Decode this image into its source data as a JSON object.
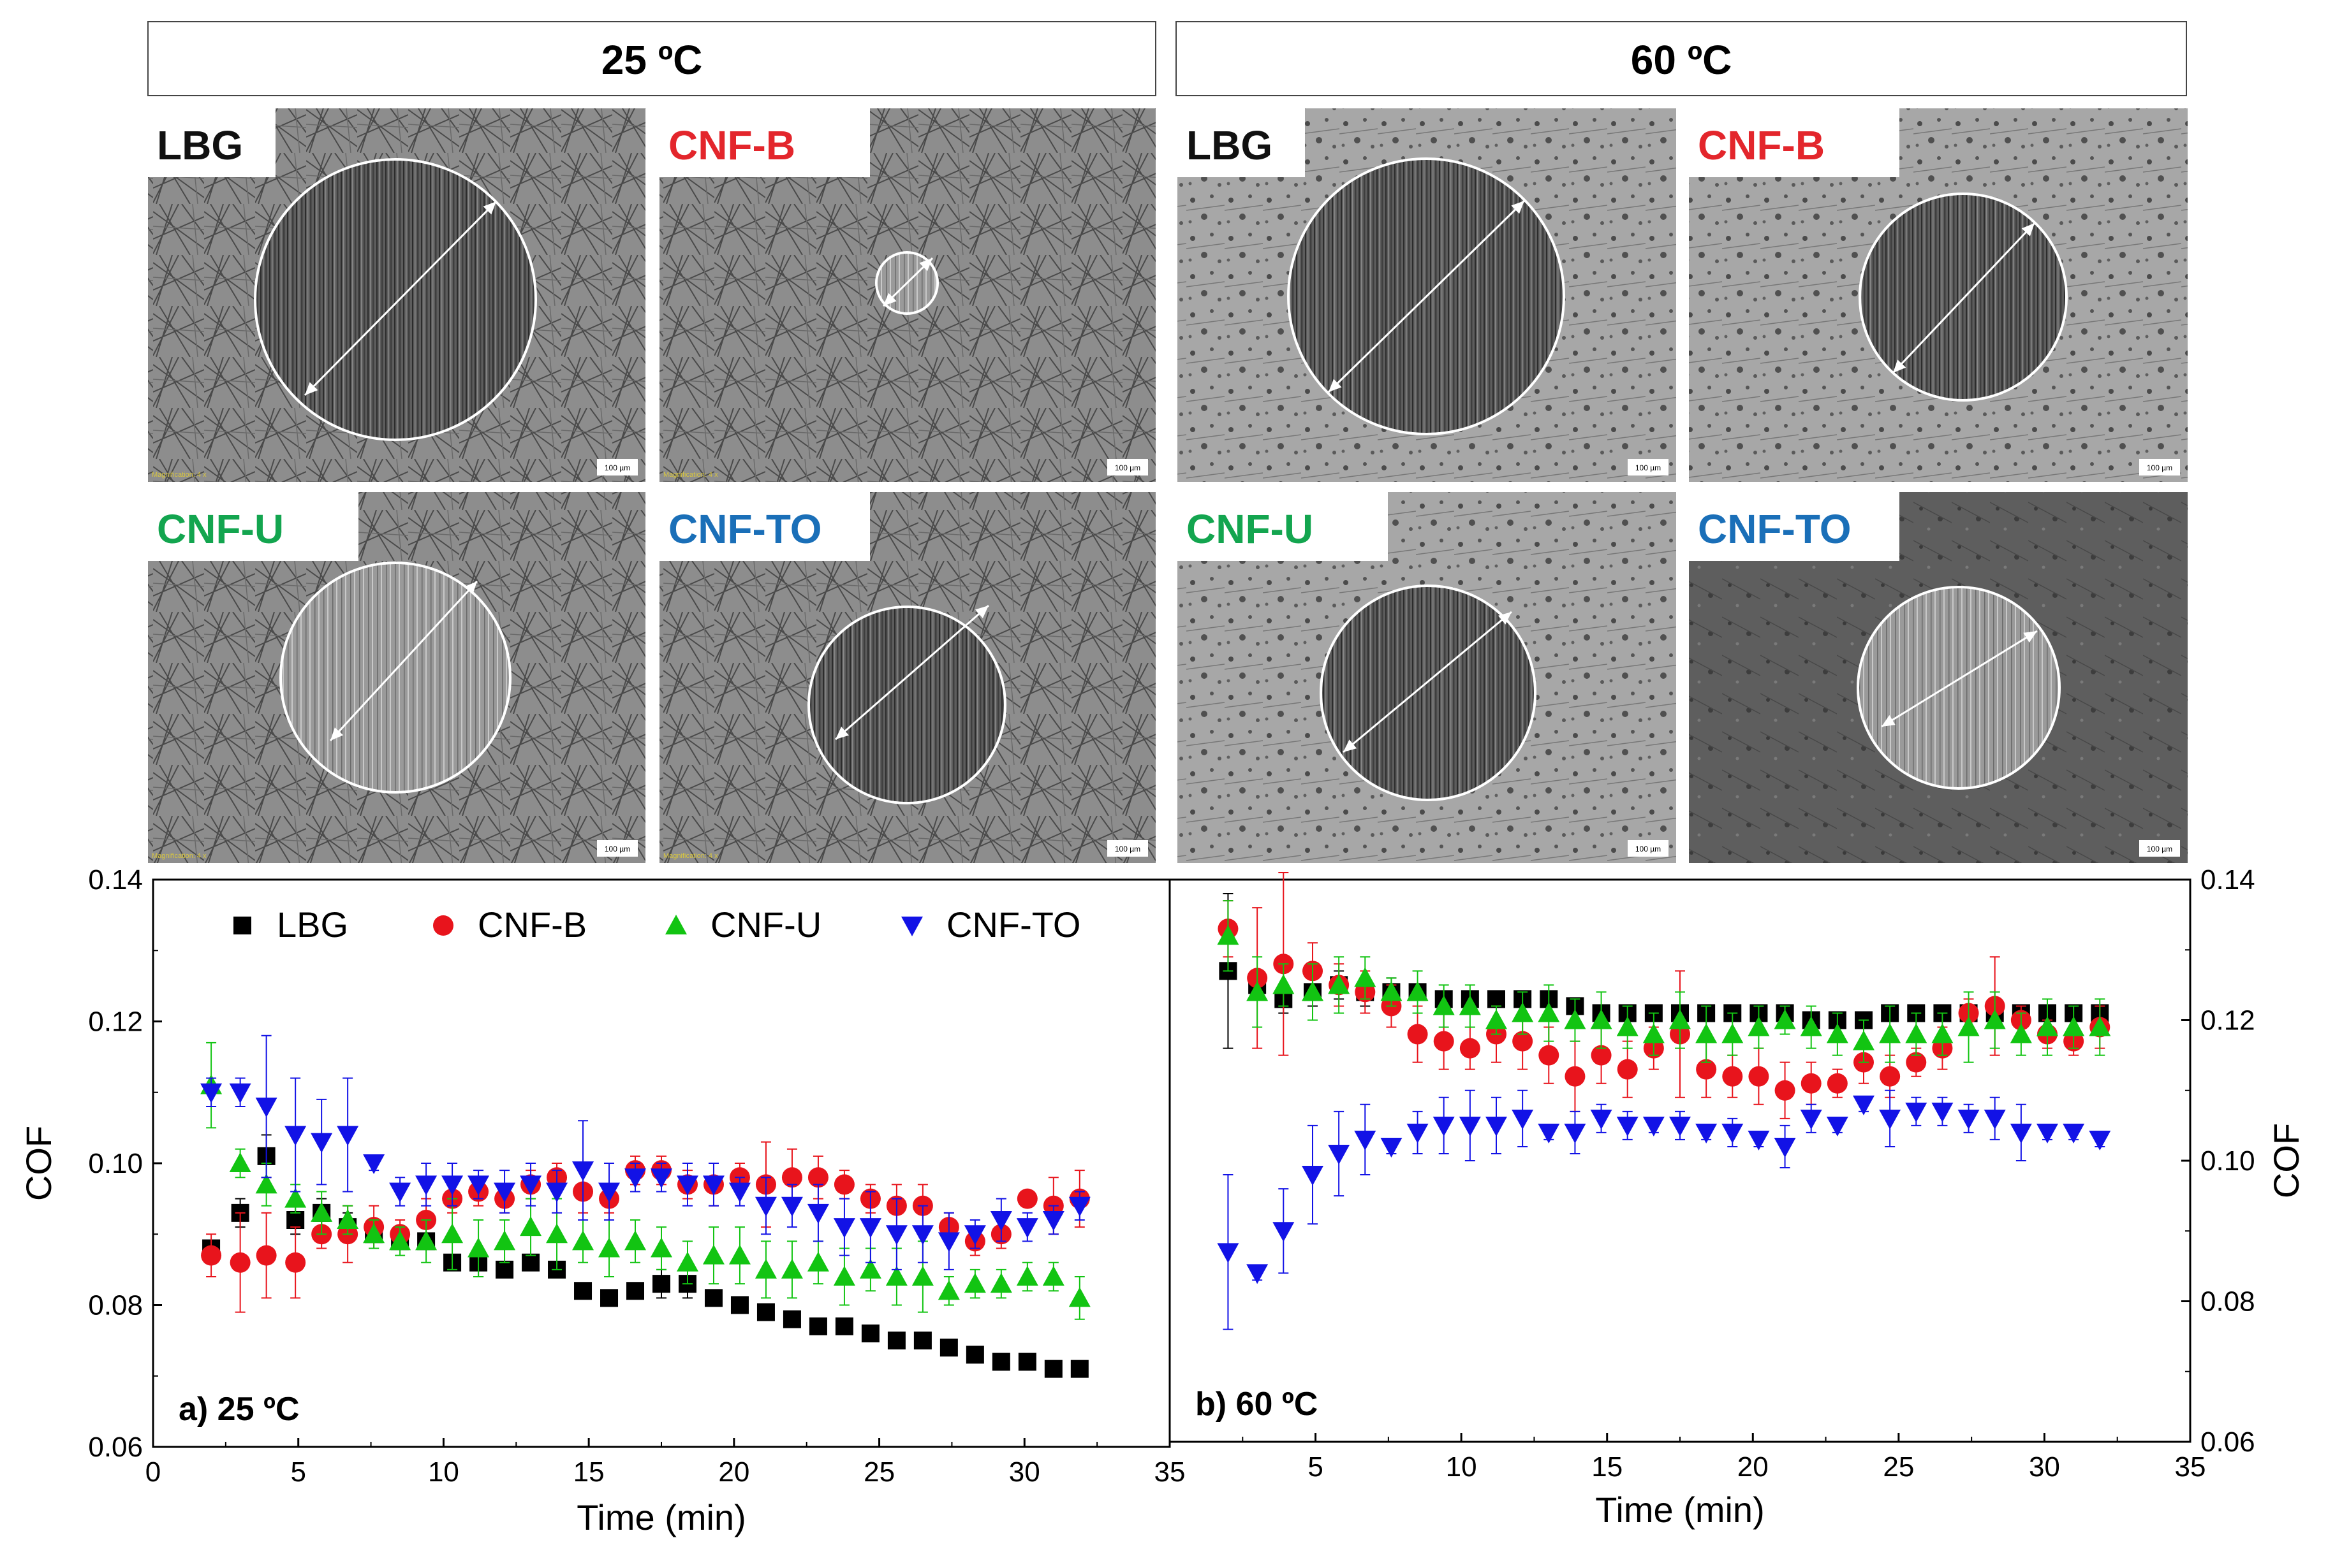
{
  "headers": {
    "left": "25 ºC",
    "right": "60 ºC"
  },
  "colors": {
    "LBG": "#000000",
    "CNF-B": "#e8141c",
    "CNF-U": "#12c412",
    "CNF-TO": "#1212e6",
    "label_LBG": "#111111",
    "label_CNF-B": "#e3262c",
    "label_CNF-U": "#13a54f",
    "label_CNF-TO": "#1a6fb8"
  },
  "images": [
    {
      "label": "LBG",
      "scale": "100 µm",
      "magnification": "Magnification: 4 x"
    },
    {
      "label": "CNF-B",
      "scale": "100 µm",
      "magnification": "Magnification: 4 x"
    },
    {
      "label": "LBG",
      "scale": "100 µm"
    },
    {
      "label": "CNF-B",
      "scale": "100 µm"
    },
    {
      "label": "CNF-U",
      "scale": "100 µm",
      "magnification": "Magnification: 4 x"
    },
    {
      "label": "CNF-TO",
      "scale": "100 µm",
      "magnification": "Magnification: 4 x"
    },
    {
      "label": "CNF-U",
      "scale": "100 µm"
    },
    {
      "label": "CNF-TO",
      "scale": "100 µm"
    }
  ],
  "chart_data": [
    {
      "type": "scatter",
      "title": "a) 25 ºC",
      "xlabel": "Time (min)",
      "ylabel": "COF",
      "xlim": [
        0,
        35
      ],
      "ylim": [
        0.06,
        0.14
      ],
      "xticks": [
        "0",
        "5",
        "10",
        "15",
        "20",
        "25",
        "30",
        "35"
      ],
      "yticks": [
        "0.06",
        "0.08",
        "0.10",
        "0.12",
        "0.14"
      ],
      "legend": "top-left",
      "x": [
        2.0,
        3.0,
        3.9,
        4.9,
        5.8,
        6.7,
        7.6,
        8.5,
        9.4,
        10.3,
        11.2,
        12.1,
        13.0,
        13.9,
        14.8,
        15.7,
        16.6,
        17.5,
        18.4,
        19.3,
        20.2,
        21.1,
        22.0,
        22.9,
        23.8,
        24.7,
        25.6,
        26.5,
        27.4,
        28.3,
        29.2,
        30.1,
        31.0,
        31.9
      ],
      "series": [
        {
          "name": "LBG",
          "marker": "square",
          "values": [
            0.088,
            0.093,
            0.101,
            0.092,
            0.093,
            0.091,
            0.09,
            0.089,
            0.089,
            0.086,
            0.086,
            0.085,
            0.086,
            0.085,
            0.082,
            0.081,
            0.082,
            0.083,
            0.083,
            0.081,
            0.08,
            0.079,
            0.078,
            0.077,
            0.077,
            0.076,
            0.075,
            0.075,
            0.074,
            0.073,
            0.072,
            0.072,
            0.071,
            0.071
          ],
          "err": [
            0.001,
            0.002,
            0.003,
            0.002,
            0.002,
            0.002,
            0.001,
            0.001,
            0.001,
            0.001,
            0.002,
            0.001,
            0.001,
            0.001,
            0.001,
            0.001,
            0.001,
            0.002,
            0.002,
            0.001,
            0.001,
            0.001,
            0.001,
            0.001,
            0.001,
            0.001,
            0.001,
            0.001,
            0.001,
            0.001,
            0.001,
            0.001,
            0.001,
            0.001
          ]
        },
        {
          "name": "CNF-B",
          "marker": "circle",
          "values": [
            0.087,
            0.086,
            0.087,
            0.086,
            0.09,
            0.09,
            0.091,
            0.09,
            0.092,
            0.095,
            0.096,
            0.095,
            0.097,
            0.098,
            0.096,
            0.095,
            0.099,
            0.099,
            0.097,
            0.097,
            0.098,
            0.097,
            0.098,
            0.098,
            0.097,
            0.095,
            0.094,
            0.094,
            0.091,
            0.089,
            0.09,
            0.095,
            0.094,
            0.095
          ],
          "err": [
            0.003,
            0.007,
            0.006,
            0.005,
            0.002,
            0.004,
            0.003,
            0.002,
            0.003,
            0.002,
            0.002,
            0.002,
            0.002,
            0.002,
            0.003,
            0.002,
            0.002,
            0.002,
            0.002,
            0.003,
            0.002,
            0.006,
            0.004,
            0.003,
            0.002,
            0.002,
            0.003,
            0.003,
            0.002,
            0.002,
            0.002,
            0.001,
            0.004,
            0.004
          ]
        },
        {
          "name": "CNF-U",
          "marker": "triangle-up",
          "values": [
            0.111,
            0.1,
            0.097,
            0.095,
            0.093,
            0.092,
            0.09,
            0.089,
            0.089,
            0.09,
            0.088,
            0.089,
            0.091,
            0.09,
            0.089,
            0.088,
            0.089,
            0.088,
            0.086,
            0.087,
            0.087,
            0.085,
            0.085,
            0.086,
            0.084,
            0.085,
            0.084,
            0.084,
            0.082,
            0.083,
            0.083,
            0.084,
            0.084,
            0.081
          ],
          "err": [
            0.006,
            0.002,
            0.003,
            0.002,
            0.003,
            0.002,
            0.002,
            0.002,
            0.003,
            0.005,
            0.004,
            0.003,
            0.004,
            0.005,
            0.003,
            0.004,
            0.003,
            0.003,
            0.003,
            0.004,
            0.004,
            0.004,
            0.004,
            0.003,
            0.004,
            0.003,
            0.004,
            0.005,
            0.002,
            0.002,
            0.002,
            0.002,
            0.002,
            0.003
          ]
        },
        {
          "name": "CNF-TO",
          "marker": "triangle-down",
          "values": [
            0.11,
            0.11,
            0.108,
            0.104,
            0.103,
            0.104,
            0.1,
            0.096,
            0.097,
            0.097,
            0.097,
            0.096,
            0.097,
            0.096,
            0.099,
            0.096,
            0.098,
            0.098,
            0.097,
            0.097,
            0.096,
            0.094,
            0.094,
            0.093,
            0.091,
            0.091,
            0.09,
            0.09,
            0.089,
            0.09,
            0.092,
            0.091,
            0.092,
            0.094
          ],
          "err": [
            0.002,
            0.002,
            0.01,
            0.008,
            0.006,
            0.008,
            0.001,
            0.002,
            0.003,
            0.003,
            0.002,
            0.003,
            0.003,
            0.003,
            0.007,
            0.004,
            0.002,
            0.002,
            0.003,
            0.003,
            0.002,
            0.004,
            0.003,
            0.004,
            0.004,
            0.005,
            0.005,
            0.004,
            0.004,
            0.002,
            0.003,
            0.002,
            0.002,
            0.002
          ]
        }
      ]
    },
    {
      "type": "scatter",
      "title": "b) 60 ºC",
      "xlabel": "Time (min)",
      "ylabel": "COF",
      "xlim": [
        0,
        35
      ],
      "ylim": [
        0.06,
        0.14
      ],
      "xticks": [
        "",
        "5",
        "10",
        "15",
        "20",
        "25",
        "30",
        "35"
      ],
      "yticks": [
        "0.06",
        "0.08",
        "0.10",
        "0.12",
        "0.14"
      ],
      "x": [
        2.0,
        3.0,
        3.9,
        4.9,
        5.8,
        6.7,
        7.6,
        8.5,
        9.4,
        10.3,
        11.2,
        12.1,
        13.0,
        13.9,
        14.8,
        15.7,
        16.6,
        17.5,
        18.4,
        19.3,
        20.2,
        21.1,
        22.0,
        22.9,
        23.8,
        24.7,
        25.6,
        26.5,
        27.4,
        28.3,
        29.2,
        30.1,
        31.0,
        31.9
      ],
      "series": [
        {
          "name": "LBG",
          "marker": "square",
          "values": [
            0.127,
            0.125,
            0.123,
            0.124,
            0.125,
            0.124,
            0.124,
            0.124,
            0.123,
            0.123,
            0.123,
            0.123,
            0.123,
            0.122,
            0.121,
            0.121,
            0.121,
            0.121,
            0.121,
            0.121,
            0.121,
            0.121,
            0.12,
            0.12,
            0.12,
            0.121,
            0.121,
            0.121,
            0.121,
            0.121,
            0.121,
            0.121,
            0.121,
            0.121
          ],
          "err": [
            0.011,
            0.002,
            0.002,
            0.002,
            0.002,
            0.002,
            0.002,
            0.001,
            0.001,
            0.001,
            0.001,
            0.001,
            0.001,
            0.001,
            0.001,
            0.001,
            0.001,
            0.001,
            0.001,
            0.001,
            0.001,
            0.001,
            0.001,
            0.001,
            0.001,
            0.001,
            0.001,
            0.001,
            0.001,
            0.001,
            0.001,
            0.001,
            0.001,
            0.001
          ]
        },
        {
          "name": "CNF-B",
          "marker": "circle",
          "values": [
            0.133,
            0.126,
            0.128,
            0.127,
            0.125,
            0.124,
            0.122,
            0.118,
            0.117,
            0.116,
            0.118,
            0.117,
            0.115,
            0.112,
            0.115,
            0.113,
            0.116,
            0.118,
            0.113,
            0.112,
            0.112,
            0.11,
            0.111,
            0.111,
            0.114,
            0.112,
            0.114,
            0.116,
            0.121,
            0.122,
            0.12,
            0.118,
            0.117,
            0.119
          ],
          "err": [
            0.004,
            0.01,
            0.013,
            0.004,
            0.003,
            0.003,
            0.003,
            0.004,
            0.004,
            0.003,
            0.004,
            0.004,
            0.004,
            0.005,
            0.004,
            0.004,
            0.003,
            0.009,
            0.004,
            0.003,
            0.004,
            0.004,
            0.003,
            0.002,
            0.003,
            0.003,
            0.002,
            0.003,
            0.002,
            0.007,
            0.002,
            0.002,
            0.002,
            0.003
          ]
        },
        {
          "name": "CNF-U",
          "marker": "triangle-up",
          "values": [
            0.132,
            0.124,
            0.125,
            0.124,
            0.125,
            0.126,
            0.124,
            0.124,
            0.122,
            0.122,
            0.12,
            0.121,
            0.121,
            0.12,
            0.12,
            0.119,
            0.118,
            0.12,
            0.118,
            0.118,
            0.119,
            0.12,
            0.119,
            0.118,
            0.117,
            0.118,
            0.118,
            0.118,
            0.119,
            0.12,
            0.118,
            0.119,
            0.119,
            0.119
          ],
          "err": [
            0.005,
            0.005,
            0.003,
            0.004,
            0.004,
            0.003,
            0.002,
            0.003,
            0.003,
            0.003,
            0.002,
            0.003,
            0.004,
            0.003,
            0.004,
            0.003,
            0.003,
            0.004,
            0.004,
            0.003,
            0.003,
            0.002,
            0.003,
            0.003,
            0.003,
            0.004,
            0.003,
            0.003,
            0.005,
            0.004,
            0.003,
            0.004,
            0.003,
            0.004
          ]
        },
        {
          "name": "CNF-TO",
          "marker": "triangle-down",
          "values": [
            0.087,
            0.084,
            0.09,
            0.098,
            0.101,
            0.103,
            0.102,
            0.104,
            0.105,
            0.105,
            0.105,
            0.106,
            0.104,
            0.104,
            0.106,
            0.105,
            0.105,
            0.105,
            0.104,
            0.104,
            0.103,
            0.102,
            0.106,
            0.105,
            0.108,
            0.106,
            0.107,
            0.107,
            0.106,
            0.106,
            0.104,
            0.104,
            0.104,
            0.103
          ],
          "err": [
            0.011,
            0.001,
            0.006,
            0.007,
            0.006,
            0.005,
            0.001,
            0.003,
            0.004,
            0.005,
            0.004,
            0.004,
            0.001,
            0.003,
            0.002,
            0.002,
            0.001,
            0.002,
            0.001,
            0.002,
            0.001,
            0.003,
            0.002,
            0.001,
            0.001,
            0.004,
            0.002,
            0.002,
            0.002,
            0.003,
            0.004,
            0.001,
            0.001,
            0.001
          ]
        }
      ]
    }
  ]
}
